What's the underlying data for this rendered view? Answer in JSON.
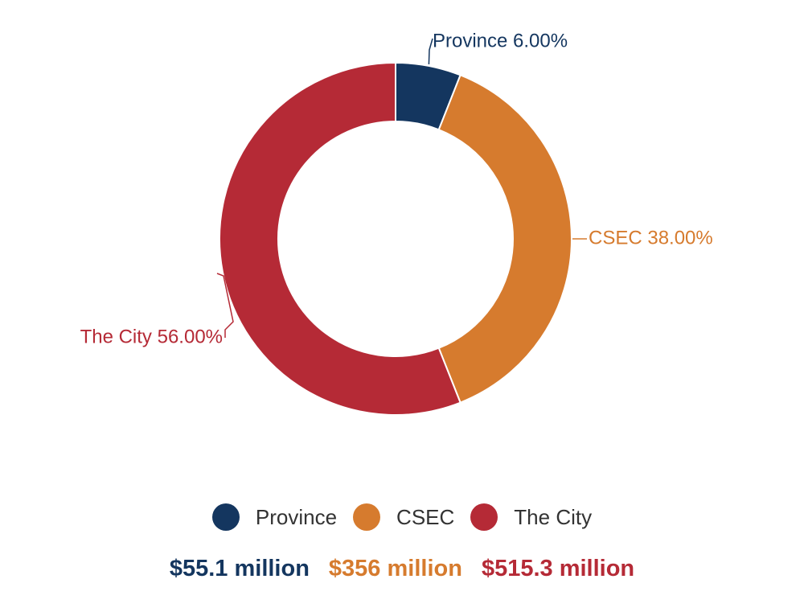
{
  "chart_data": {
    "type": "pie",
    "donut": true,
    "title": "",
    "slices": [
      {
        "name": "Province",
        "value": 6.0,
        "label": "Province 6.00%",
        "color": "#14365f",
        "amount": "$55.1 million"
      },
      {
        "name": "CSEC",
        "value": 38.0,
        "label": "CSEC 38.00%",
        "color": "#d67b2e",
        "amount": "$356 million"
      },
      {
        "name": "The City",
        "value": 56.0,
        "label": "The City 56.00%",
        "color": "#b52a36",
        "amount": "$515.3 million"
      }
    ],
    "legend": {
      "placement": "bottom",
      "entries": [
        "Province",
        "CSEC",
        "The City"
      ]
    }
  }
}
